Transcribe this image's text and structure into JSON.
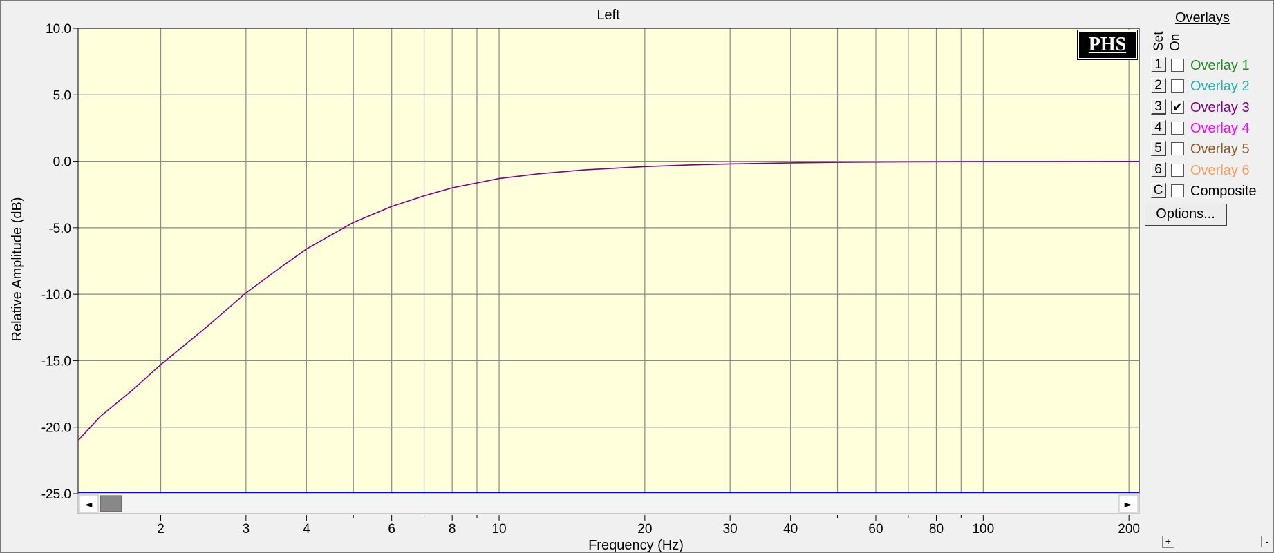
{
  "chart_data": {
    "type": "line",
    "title": "Left",
    "xlabel": "Frequency (Hz)",
    "ylabel": "Relative Amplitude (dB)",
    "x_scale": "log",
    "xlim": [
      1.35,
      210
    ],
    "ylim": [
      -25,
      10
    ],
    "y_ticks": [
      "10.0",
      "5.0",
      "0.0",
      "-5.0",
      "-10.0",
      "-15.0",
      "-20.0",
      "-25.0"
    ],
    "x_ticks": [
      "2",
      "3",
      "4",
      "6",
      "8",
      "10",
      "20",
      "30",
      "40",
      "60",
      "80",
      "100",
      "200"
    ],
    "grid": true,
    "series": [
      {
        "name": "Overlay 3",
        "color": "#800080",
        "x": [
          1.35,
          1.5,
          1.75,
          2,
          2.5,
          3,
          3.5,
          4,
          5,
          6,
          7,
          8,
          10,
          12,
          15,
          20,
          25,
          30,
          40,
          50,
          70,
          100,
          150,
          210
        ],
        "y": [
          -21.0,
          -19.2,
          -17.2,
          -15.3,
          -12.4,
          -9.9,
          -8.1,
          -6.6,
          -4.6,
          -3.4,
          -2.6,
          -2.0,
          -1.3,
          -0.95,
          -0.65,
          -0.4,
          -0.27,
          -0.2,
          -0.12,
          -0.08,
          -0.05,
          -0.03,
          -0.02,
          -0.01
        ]
      }
    ]
  },
  "overlays": {
    "title": "Overlays",
    "set_header": "Set",
    "on_header": "On",
    "items": [
      {
        "set": "1",
        "label": "Overlay 1",
        "color": "#228b22",
        "checked": false
      },
      {
        "set": "2",
        "label": "Overlay 2",
        "color": "#20b2aa",
        "checked": false
      },
      {
        "set": "3",
        "label": "Overlay 3",
        "color": "#800080",
        "checked": true
      },
      {
        "set": "4",
        "label": "Overlay 4",
        "color": "#ff00ff",
        "checked": false
      },
      {
        "set": "5",
        "label": "Overlay 5",
        "color": "#8b5a2b",
        "checked": false
      },
      {
        "set": "6",
        "label": "Overlay 6",
        "color": "#ff9a5a",
        "checked": false
      },
      {
        "set": "C",
        "label": "Composite",
        "color": "#000000",
        "checked": false
      }
    ],
    "options_label": "Options..."
  },
  "logo_text": "PHS",
  "scrollbar": {
    "left_arrow": "◄",
    "right_arrow": "►"
  },
  "corner_controls": {
    "plus": "+",
    "minus": "-"
  }
}
